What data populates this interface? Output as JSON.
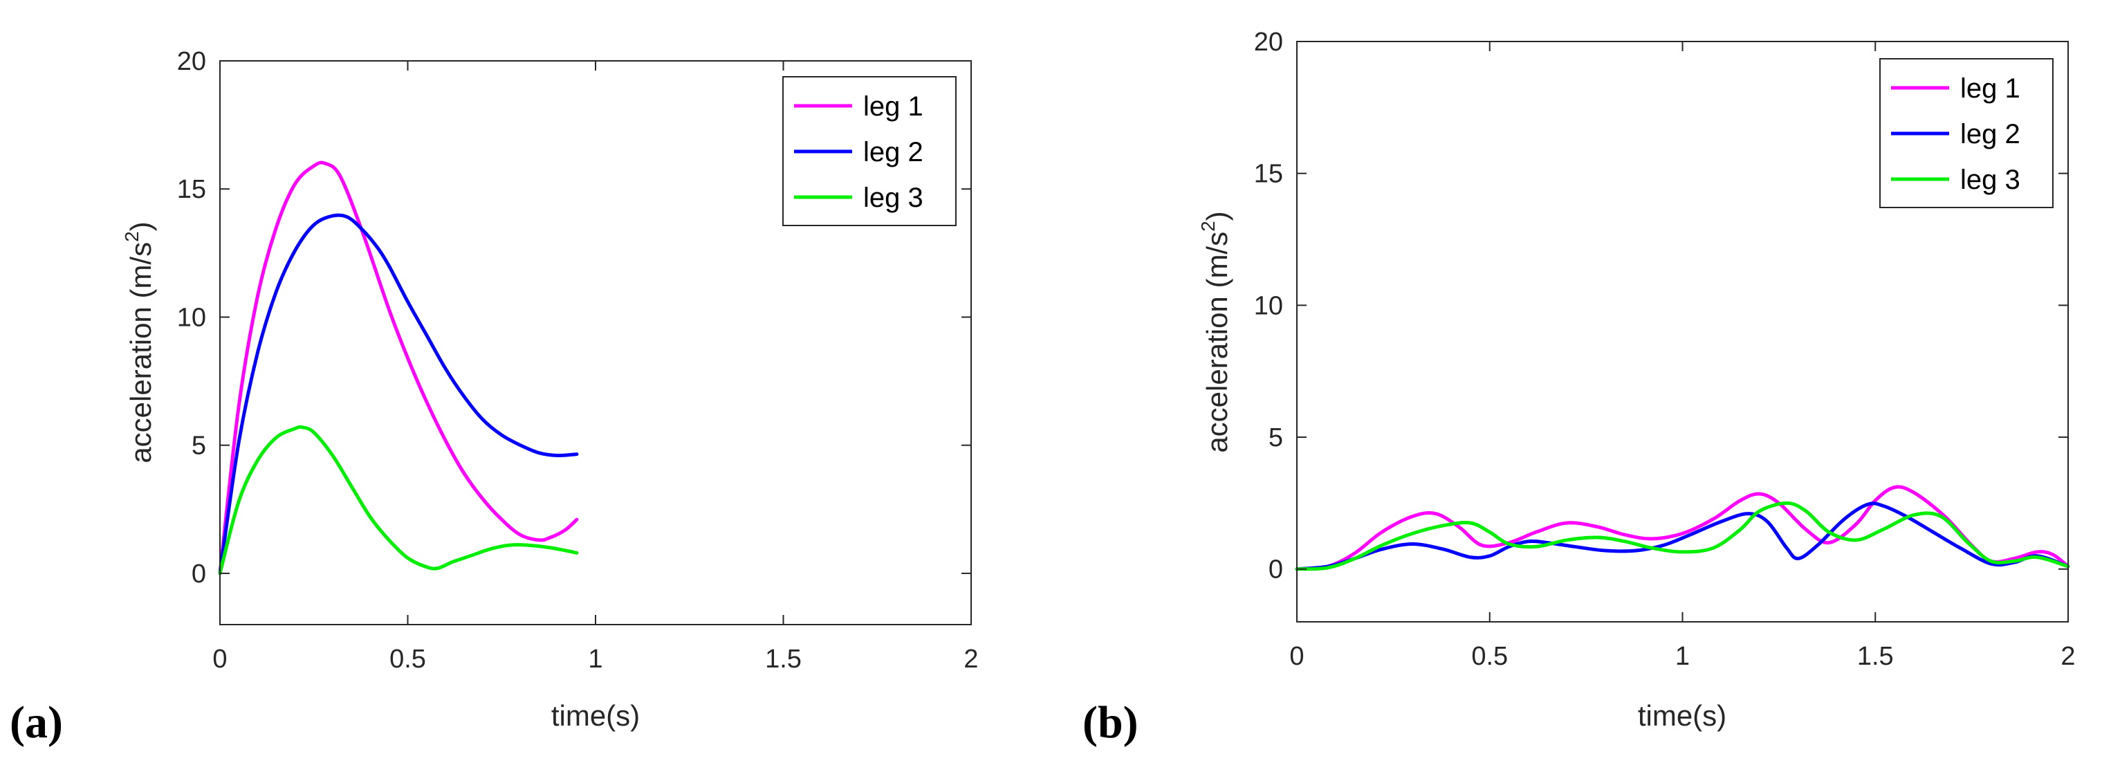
{
  "chart_data": [
    {
      "type": "line",
      "panel_label": "(a)",
      "xlabel": "time(s)",
      "ylabel": "acceleration (m/s",
      "ylabel_sup": "2",
      "ylabel_close": ")",
      "xlim": [
        0,
        2
      ],
      "ylim": [
        -2,
        20
      ],
      "xticks": [
        0,
        0.5,
        1,
        1.5,
        2
      ],
      "xtick_labels": [
        "0",
        "0.5",
        "1",
        "1.5",
        "2"
      ],
      "yticks": [
        0,
        5,
        10,
        15,
        20
      ],
      "ytick_labels": [
        "0",
        "5",
        "10",
        "15",
        "20"
      ],
      "legend_position": "top-right",
      "series": [
        {
          "name": "leg 1",
          "color": "#ff00ff",
          "x": [
            0,
            0.05,
            0.1,
            0.15,
            0.2,
            0.25,
            0.28,
            0.32,
            0.38,
            0.45,
            0.5,
            0.55,
            0.6,
            0.65,
            0.7,
            0.75,
            0.8,
            0.85,
            0.88,
            0.92,
            0.95
          ],
          "y": [
            0,
            6.5,
            10.8,
            13.5,
            15.2,
            15.9,
            16.0,
            15.5,
            13.3,
            10.3,
            8.4,
            6.7,
            5.2,
            3.9,
            2.9,
            2.1,
            1.5,
            1.3,
            1.4,
            1.7,
            2.1
          ]
        },
        {
          "name": "leg 2",
          "color": "#0000ff",
          "x": [
            0,
            0.05,
            0.1,
            0.15,
            0.2,
            0.25,
            0.3,
            0.34,
            0.38,
            0.42,
            0.45,
            0.5,
            0.55,
            0.6,
            0.65,
            0.7,
            0.75,
            0.8,
            0.85,
            0.9,
            0.95
          ],
          "y": [
            0,
            5.1,
            8.6,
            11.0,
            12.6,
            13.6,
            13.95,
            13.9,
            13.4,
            12.7,
            12.0,
            10.6,
            9.3,
            8.0,
            6.9,
            6.0,
            5.4,
            5.0,
            4.7,
            4.6,
            4.65
          ]
        },
        {
          "name": "leg 3",
          "color": "#00ee00",
          "x": [
            0,
            0.05,
            0.1,
            0.15,
            0.2,
            0.22,
            0.25,
            0.3,
            0.35,
            0.4,
            0.45,
            0.5,
            0.55,
            0.58,
            0.62,
            0.67,
            0.72,
            0.77,
            0.82,
            0.88,
            0.95
          ],
          "y": [
            0,
            2.8,
            4.4,
            5.3,
            5.65,
            5.7,
            5.5,
            4.6,
            3.4,
            2.2,
            1.3,
            0.6,
            0.25,
            0.2,
            0.45,
            0.7,
            0.95,
            1.1,
            1.1,
            1.0,
            0.8
          ]
        }
      ]
    },
    {
      "type": "line",
      "panel_label": "(b)",
      "xlabel": "time(s)",
      "ylabel": "acceleration (m/s",
      "ylabel_sup": "2",
      "ylabel_close": ")",
      "xlim": [
        0,
        2
      ],
      "ylim": [
        -2,
        20
      ],
      "xticks": [
        0,
        0.5,
        1,
        1.5,
        2
      ],
      "xtick_labels": [
        "0",
        "0.5",
        "1",
        "1.5",
        "2"
      ],
      "yticks": [
        0,
        5,
        10,
        15,
        20
      ],
      "ytick_labels": [
        "0",
        "5",
        "10",
        "15",
        "20"
      ],
      "legend_position": "top-right",
      "series": [
        {
          "name": "leg 1",
          "color": "#ff00ff",
          "x": [
            0,
            0.08,
            0.15,
            0.22,
            0.3,
            0.36,
            0.42,
            0.48,
            0.55,
            0.62,
            0.7,
            0.78,
            0.85,
            0.92,
            1.0,
            1.08,
            1.15,
            1.2,
            1.25,
            1.32,
            1.38,
            1.45,
            1.5,
            1.55,
            1.6,
            1.68,
            1.75,
            1.8,
            1.86,
            1.92,
            1.96,
            2.0
          ],
          "y": [
            0,
            0.1,
            0.6,
            1.4,
            2.0,
            2.1,
            1.6,
            0.9,
            1.0,
            1.4,
            1.75,
            1.6,
            1.3,
            1.15,
            1.35,
            1.9,
            2.6,
            2.85,
            2.5,
            1.5,
            1.0,
            1.7,
            2.6,
            3.1,
            2.9,
            2.0,
            0.9,
            0.3,
            0.4,
            0.65,
            0.55,
            0.1
          ]
        },
        {
          "name": "leg 2",
          "color": "#0000ff",
          "x": [
            0,
            0.08,
            0.15,
            0.22,
            0.3,
            0.38,
            0.45,
            0.5,
            0.55,
            0.6,
            0.65,
            0.72,
            0.8,
            0.88,
            0.95,
            1.02,
            1.1,
            1.17,
            1.22,
            1.27,
            1.3,
            1.35,
            1.42,
            1.48,
            1.52,
            1.58,
            1.65,
            1.72,
            1.8,
            1.86,
            1.92,
            2.0
          ],
          "y": [
            0,
            0.1,
            0.4,
            0.75,
            0.95,
            0.75,
            0.45,
            0.5,
            0.85,
            1.05,
            1.0,
            0.85,
            0.7,
            0.7,
            0.9,
            1.3,
            1.8,
            2.1,
            1.8,
            0.8,
            0.4,
            0.9,
            1.9,
            2.45,
            2.4,
            2.0,
            1.4,
            0.8,
            0.2,
            0.25,
            0.5,
            0.1
          ]
        },
        {
          "name": "leg 3",
          "color": "#00ee00",
          "x": [
            0,
            0.08,
            0.15,
            0.22,
            0.3,
            0.38,
            0.45,
            0.5,
            0.55,
            0.62,
            0.7,
            0.78,
            0.85,
            0.92,
            1.0,
            1.08,
            1.15,
            1.2,
            1.27,
            1.32,
            1.38,
            1.45,
            1.52,
            1.6,
            1.67,
            1.74,
            1.8,
            1.86,
            1.92,
            2.0
          ],
          "y": [
            0,
            0.05,
            0.4,
            0.9,
            1.35,
            1.65,
            1.75,
            1.4,
            0.95,
            0.85,
            1.1,
            1.2,
            1.05,
            0.8,
            0.65,
            0.8,
            1.5,
            2.2,
            2.5,
            2.2,
            1.4,
            1.1,
            1.5,
            2.05,
            2.0,
            1.0,
            0.3,
            0.3,
            0.45,
            0.1
          ]
        }
      ]
    }
  ]
}
